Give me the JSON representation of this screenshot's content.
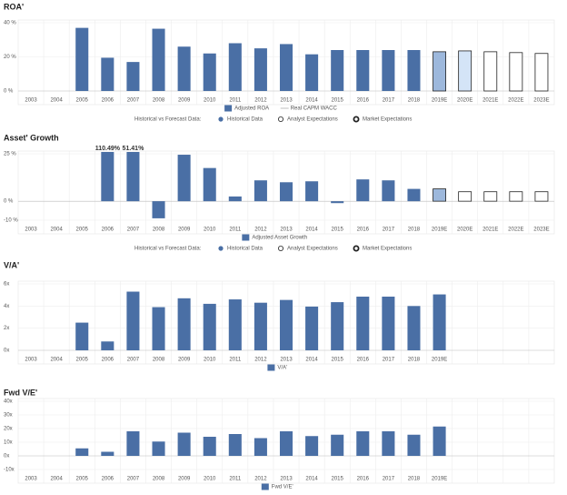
{
  "chart_data": [
    {
      "type": "bar",
      "title": "ROA'",
      "categories": [
        "2003",
        "2004",
        "2005",
        "2006",
        "2007",
        "2008",
        "2009",
        "2010",
        "2011",
        "2012",
        "2013",
        "2014",
        "2015",
        "2016",
        "2017",
        "2018",
        "2019E",
        "2020E",
        "2021E",
        "2022E",
        "2023E"
      ],
      "series": [
        {
          "name": "Adjusted ROA",
          "color": "#4a6fa5",
          "values": [
            null,
            null,
            37,
            19.5,
            17,
            36.5,
            26,
            22,
            28,
            25,
            27.5,
            21.5,
            24,
            24,
            24,
            24,
            23,
            23.5,
            23,
            22.5,
            22
          ]
        },
        {
          "name": "Real CAPM WACC",
          "color": "#c8c8c8",
          "kind": "line",
          "values": [
            null,
            null,
            null,
            null,
            null,
            null,
            null,
            null,
            null,
            null,
            null,
            null,
            null,
            null,
            null,
            null,
            null,
            null,
            null,
            null,
            null
          ]
        }
      ],
      "bar_colors": [
        null,
        null,
        null,
        null,
        null,
        null,
        null,
        null,
        null,
        null,
        null,
        null,
        null,
        null,
        null,
        null,
        "#9db8dc",
        "#d4e4f7",
        "#ffffff",
        "#ffffff",
        "#ffffff"
      ],
      "edge_colors": [
        null,
        null,
        null,
        null,
        null,
        null,
        null,
        null,
        null,
        null,
        null,
        null,
        null,
        null,
        null,
        null,
        "#222222",
        "#222222",
        "#222222",
        "#222222",
        "#222222"
      ],
      "ylim": [
        0,
        40
      ],
      "yticks": [
        {
          "value": 0,
          "label": "0 %"
        },
        {
          "value": 20,
          "label": "20 %"
        },
        {
          "value": 40,
          "label": "40 %"
        }
      ],
      "forecast_legend": {
        "label": "Historical vs Forecast Data:",
        "items": [
          "Historical Data",
          "Analyst Expectations",
          "Market Expectations"
        ]
      }
    },
    {
      "type": "bar",
      "title": "Asset' Growth",
      "categories": [
        "2003",
        "2004",
        "2005",
        "2006",
        "2007",
        "2008",
        "2009",
        "2010",
        "2011",
        "2012",
        "2013",
        "2014",
        "2015",
        "2016",
        "2017",
        "2018",
        "2019E",
        "2020E",
        "2021E",
        "2022E",
        "2023E"
      ],
      "series": [
        {
          "name": "Adjusted Asset Growth",
          "color": "#4a6fa5",
          "values": [
            null,
            null,
            null,
            110.49,
            51.41,
            -9,
            24.5,
            17.5,
            2.5,
            11,
            10,
            10.5,
            -1,
            11.5,
            11,
            6.5,
            6.5,
            5,
            5,
            5,
            5
          ],
          "value_labels": [
            null,
            null,
            null,
            "110.49%",
            "51.41%",
            null,
            null,
            null,
            null,
            null,
            null,
            null,
            null,
            null,
            null,
            null,
            null,
            null,
            null,
            null,
            null
          ]
        }
      ],
      "bar_colors": [
        null,
        null,
        null,
        null,
        null,
        null,
        null,
        null,
        null,
        null,
        null,
        null,
        null,
        null,
        null,
        null,
        "#9db8dc",
        "#ffffff",
        "#ffffff",
        "#ffffff",
        "#ffffff"
      ],
      "edge_colors": [
        null,
        null,
        null,
        null,
        null,
        null,
        null,
        null,
        null,
        null,
        null,
        null,
        null,
        null,
        null,
        null,
        "#222222",
        "#222222",
        "#222222",
        "#222222",
        "#222222"
      ],
      "ylim": [
        -10,
        25
      ],
      "yticks": [
        {
          "value": -10,
          "label": "-10 %"
        },
        {
          "value": 0,
          "label": "0 %"
        },
        {
          "value": 25,
          "label": "25 %"
        }
      ],
      "forecast_legend": {
        "label": "Historical vs Forecast Data:",
        "items": [
          "Historical Data",
          "Analyst Expectations",
          "Market Expectations"
        ]
      }
    },
    {
      "type": "bar",
      "title": "V/A'",
      "categories": [
        "2003",
        "2004",
        "2005",
        "2006",
        "2007",
        "2008",
        "2009",
        "2010",
        "2011",
        "2012",
        "2013",
        "2014",
        "2015",
        "2016",
        "2017",
        "2018",
        "2019E",
        null,
        null,
        null,
        null
      ],
      "series": [
        {
          "name": "V/A'",
          "color": "#4a6fa5",
          "values": [
            null,
            null,
            2.5,
            0.8,
            5.3,
            3.9,
            4.7,
            4.2,
            4.6,
            4.3,
            4.55,
            3.95,
            4.35,
            4.85,
            4.85,
            4.0,
            5.05,
            null,
            null,
            null,
            null
          ]
        }
      ],
      "ylim": [
        0,
        6
      ],
      "yticks": [
        {
          "value": 0,
          "label": "0x"
        },
        {
          "value": 2,
          "label": "2x"
        },
        {
          "value": 4,
          "label": "4x"
        },
        {
          "value": 6,
          "label": "6x"
        }
      ]
    },
    {
      "type": "bar",
      "title": "Fwd V/E'",
      "categories": [
        "2003",
        "2004",
        "2005",
        "2006",
        "2007",
        "2008",
        "2009",
        "2010",
        "2011",
        "2012",
        "2013",
        "2014",
        "2015",
        "2016",
        "2017",
        "2018",
        "2019E",
        null,
        null,
        null,
        null
      ],
      "series": [
        {
          "name": "Fwd V/E'",
          "color": "#4a6fa5",
          "values": [
            null,
            null,
            5.5,
            3,
            18,
            10.5,
            17,
            14,
            16,
            13,
            18,
            14.5,
            15.5,
            18,
            18,
            15.5,
            21.5,
            null,
            null,
            null,
            null
          ]
        }
      ],
      "ylim": [
        -10,
        40
      ],
      "yticks": [
        {
          "value": -10,
          "label": "-10x"
        },
        {
          "value": 0,
          "label": "0x"
        },
        {
          "value": 10,
          "label": "10x"
        },
        {
          "value": 20,
          "label": "20x"
        },
        {
          "value": 30,
          "label": "30x"
        },
        {
          "value": 40,
          "label": "40x"
        }
      ]
    }
  ]
}
